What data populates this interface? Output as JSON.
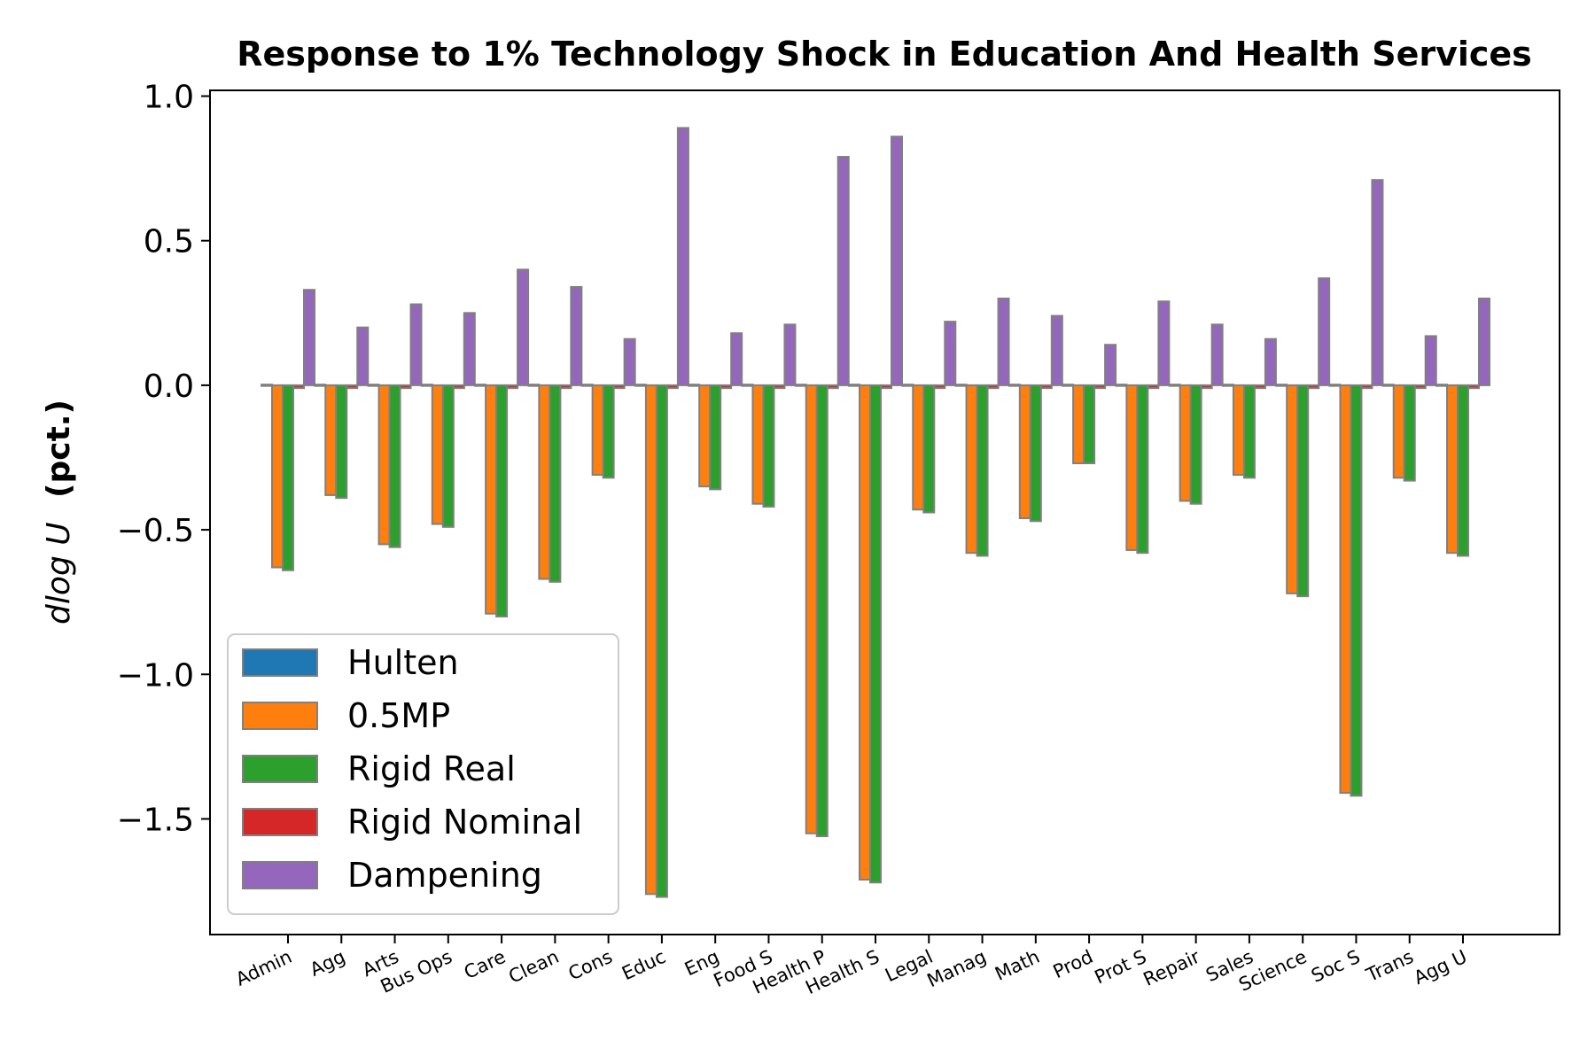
{
  "chart_data": {
    "type": "bar",
    "title": "Response to 1% Technology Shock in Education And Health Services",
    "ylabel_math": "dlog U",
    "ylabel_suffix": "(pct.)",
    "xlabel": "",
    "ylim": [
      -1.9,
      1.02
    ],
    "yticks": [
      {
        "value": 1.0,
        "label": "1.0"
      },
      {
        "value": 0.5,
        "label": "0.5"
      },
      {
        "value": 0.0,
        "label": "0.0"
      },
      {
        "value": -0.5,
        "label": "−0.5"
      },
      {
        "value": -1.0,
        "label": "−1.0"
      },
      {
        "value": -1.5,
        "label": "−1.5"
      }
    ],
    "grid": false,
    "legend_position": "lower-left",
    "categories": [
      "Admin",
      "Agg",
      "Arts",
      "Bus Ops",
      "Care",
      "Clean",
      "Cons",
      "Educ",
      "Eng",
      "Food S",
      "Health P",
      "Health S",
      "Legal",
      "Manag",
      "Math",
      "Prod",
      "Prot S",
      "Repair",
      "Sales",
      "Science",
      "Soc S",
      "Trans",
      "Agg U"
    ],
    "series": [
      {
        "name": "Hulten",
        "color": "#1f77b4",
        "values": [
          0,
          0,
          0,
          0,
          0,
          0,
          0,
          0,
          0,
          0,
          0,
          0,
          0,
          0,
          0,
          0,
          0,
          0,
          0,
          0,
          0,
          0,
          0
        ]
      },
      {
        "name": "0.5MP",
        "color": "#ff7f0e",
        "values": [
          -0.63,
          -0.38,
          -0.55,
          -0.48,
          -0.79,
          -0.67,
          -0.31,
          -1.76,
          -0.35,
          -0.41,
          -1.55,
          -1.71,
          -0.43,
          -0.58,
          -0.46,
          -0.27,
          -0.57,
          -0.4,
          -0.31,
          -0.72,
          -1.41,
          -0.32,
          -0.58
        ]
      },
      {
        "name": "Rigid Real",
        "color": "#2ca02c",
        "values": [
          -0.64,
          -0.39,
          -0.56,
          -0.49,
          -0.8,
          -0.68,
          -0.32,
          -1.77,
          -0.36,
          -0.42,
          -1.56,
          -1.72,
          -0.44,
          -0.59,
          -0.47,
          -0.27,
          -0.58,
          -0.41,
          -0.32,
          -0.73,
          -1.42,
          -0.33,
          -0.59
        ]
      },
      {
        "name": "Rigid Nominal",
        "color": "#d62728",
        "values": [
          -0.01,
          -0.01,
          -0.01,
          -0.01,
          -0.01,
          -0.01,
          -0.01,
          -0.01,
          -0.01,
          -0.01,
          -0.01,
          -0.01,
          -0.01,
          -0.01,
          -0.01,
          -0.01,
          -0.01,
          -0.01,
          -0.01,
          -0.01,
          -0.01,
          -0.01,
          -0.01
        ]
      },
      {
        "name": "Dampening",
        "color": "#9467bd",
        "values": [
          0.33,
          0.2,
          0.28,
          0.25,
          0.4,
          0.34,
          0.16,
          0.89,
          0.18,
          0.21,
          0.79,
          0.86,
          0.22,
          0.3,
          0.24,
          0.14,
          0.29,
          0.21,
          0.16,
          0.37,
          0.71,
          0.17,
          0.3
        ]
      }
    ]
  }
}
